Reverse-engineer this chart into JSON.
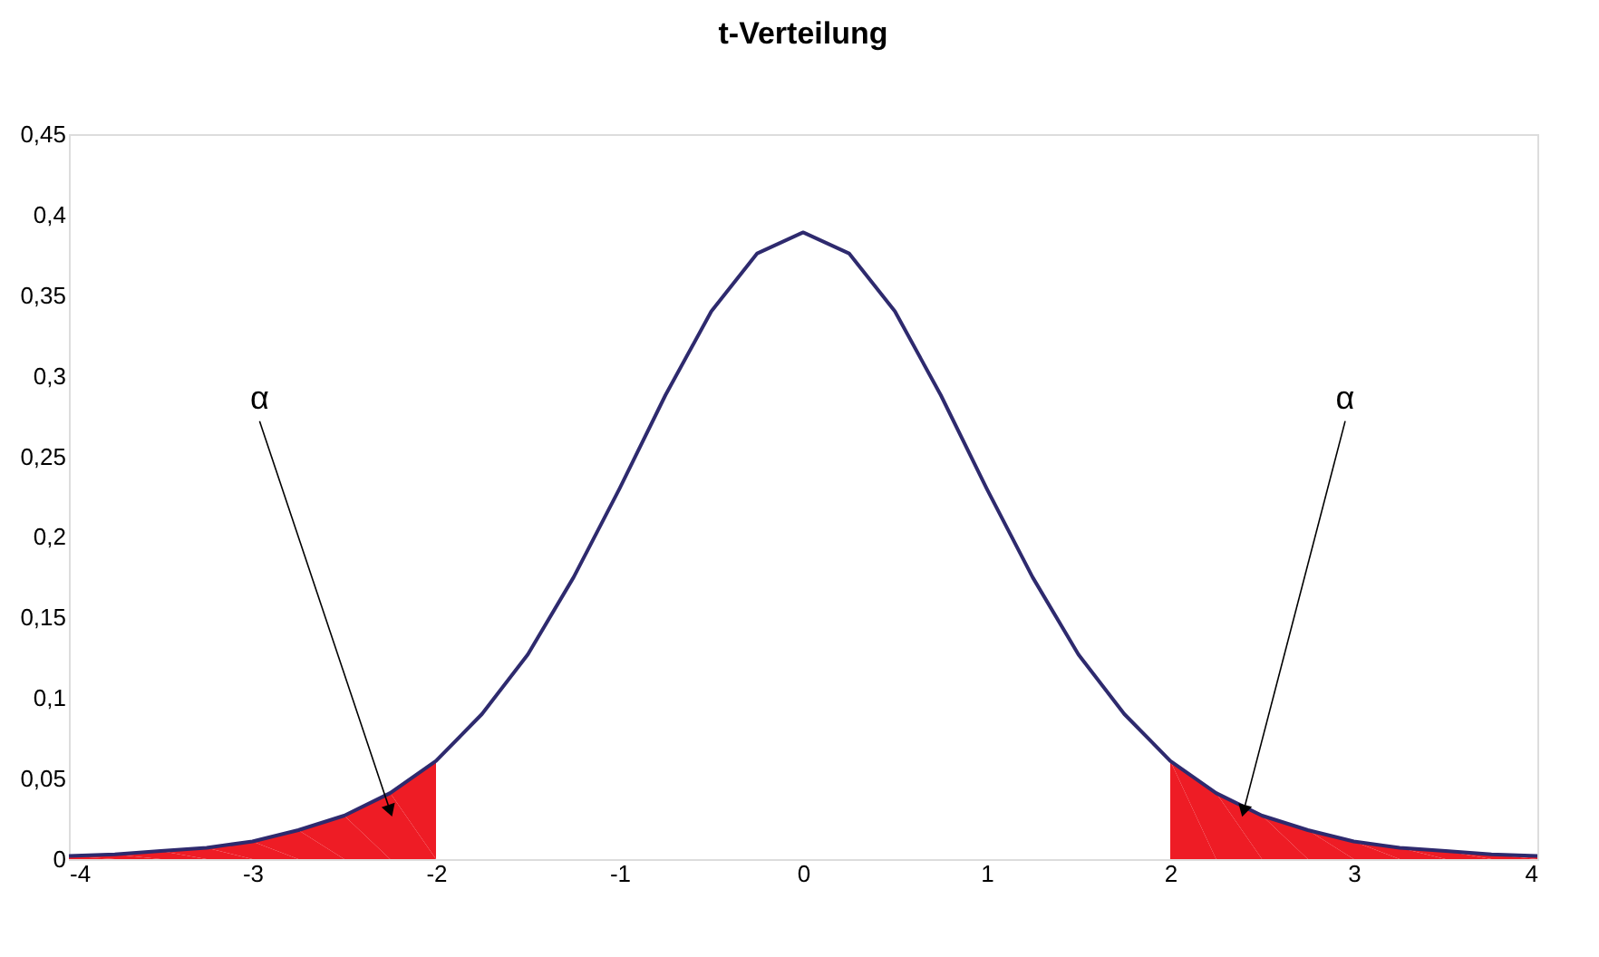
{
  "chart_data": {
    "type": "line",
    "title": "t-Verteilung",
    "xlim": [
      -4,
      4
    ],
    "xticks": [
      -4,
      -3,
      -2,
      -1,
      0,
      1,
      2,
      3,
      4
    ],
    "ylim": [
      0,
      0.45
    ],
    "yticks": [
      0,
      {
        "value": 0.05,
        "label": "0,05"
      },
      {
        "value": 0.1,
        "label": "0,1"
      },
      {
        "value": 0.15,
        "label": "0,15"
      },
      {
        "value": 0.2,
        "label": "0,2"
      },
      {
        "value": 0.25,
        "label": "0,25"
      },
      {
        "value": 0.3,
        "label": "0,3"
      },
      {
        "value": 0.35,
        "label": "0,35"
      },
      {
        "value": 0.4,
        "label": "0,4"
      },
      {
        "value": 0.45,
        "label": "0,45"
      }
    ],
    "grid": false,
    "series": [
      {
        "type": "area",
        "color": "#ee1c25",
        "x": [
          -4,
          -3.75,
          -3.5,
          -3.25,
          -3,
          -2.75,
          -2.5,
          -2.25,
          -2
        ],
        "values": [
          0.002,
          0.003,
          0.005,
          0.007,
          0.011,
          0.018,
          0.027,
          0.041,
          0.061
        ]
      },
      {
        "type": "area",
        "color": "#ee1c25",
        "x": [
          2,
          2.25,
          2.5,
          2.75,
          3,
          3.25,
          3.5,
          3.75,
          4
        ],
        "values": [
          0.061,
          0.041,
          0.027,
          0.018,
          0.011,
          0.007,
          0.005,
          0.003,
          0.002
        ]
      },
      {
        "color": "#2e2a6e",
        "x": [
          -4,
          -3.75,
          -3.5,
          -3.25,
          -3,
          -2.75,
          -2.5,
          -2.25,
          -2,
          -1.75,
          -1.5,
          -1.25,
          -1,
          -0.75,
          -0.5,
          -0.25,
          0,
          0.25,
          0.5,
          0.75,
          1,
          1.25,
          1.5,
          1.75,
          2,
          2.25,
          2.5,
          2.75,
          3,
          3.25,
          3.5,
          3.75,
          4
        ],
        "values": [
          0.002,
          0.003,
          0.005,
          0.007,
          0.011,
          0.018,
          0.027,
          0.041,
          0.061,
          0.09,
          0.127,
          0.175,
          0.23,
          0.288,
          0.34,
          0.376,
          0.389,
          0.376,
          0.34,
          0.288,
          0.23,
          0.175,
          0.127,
          0.09,
          0.061,
          0.041,
          0.027,
          0.018,
          0.011,
          0.007,
          0.005,
          0.003,
          0.002
        ]
      }
    ],
    "annotations": [
      {
        "text": "α",
        "x": -2.25,
        "y": 0.03
      },
      {
        "text": "α",
        "x": 2.4,
        "y": 0.03
      }
    ]
  }
}
